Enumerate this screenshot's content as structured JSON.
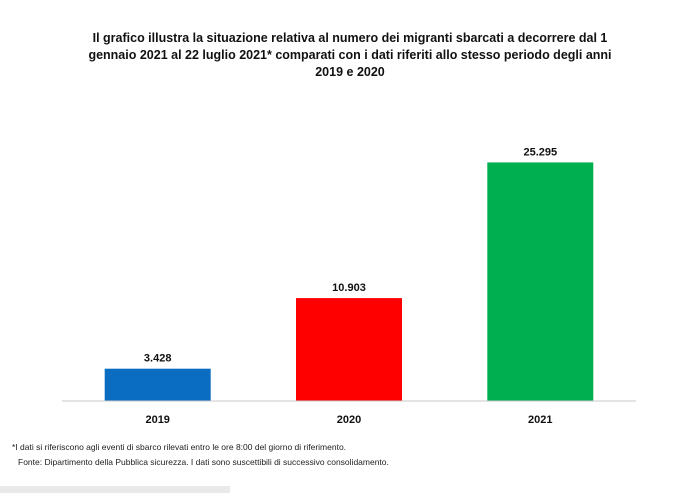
{
  "title_lines": [
    "Il grafico illustra la situazione relativa al numero dei migranti sbarcati a decorrere dal 1",
    "gennaio 2021 al 22 luglio 2021* comparati con i dati riferiti allo stesso periodo degli anni",
    "2019  e 2020"
  ],
  "chart_data": {
    "type": "bar",
    "categories": [
      "2019",
      "2020",
      "2021"
    ],
    "values": [
      3428,
      10903,
      25295
    ],
    "data_labels": [
      "3.428",
      "10.903",
      "25.295"
    ],
    "colors": [
      "#0a6dc2",
      "#ff0000",
      "#00b050"
    ],
    "ylim": [
      0,
      30000
    ],
    "grid": false,
    "legend": "none"
  },
  "footnotes": {
    "note": "*I dati si riferiscono agli eventi di sbarco rilevati entro le ore 8:00 del giorno di riferimento.",
    "source": "Fonte: Dipartimento della Pubblica sicurezza. I dati sono suscettibili di successivo consolidamento."
  }
}
